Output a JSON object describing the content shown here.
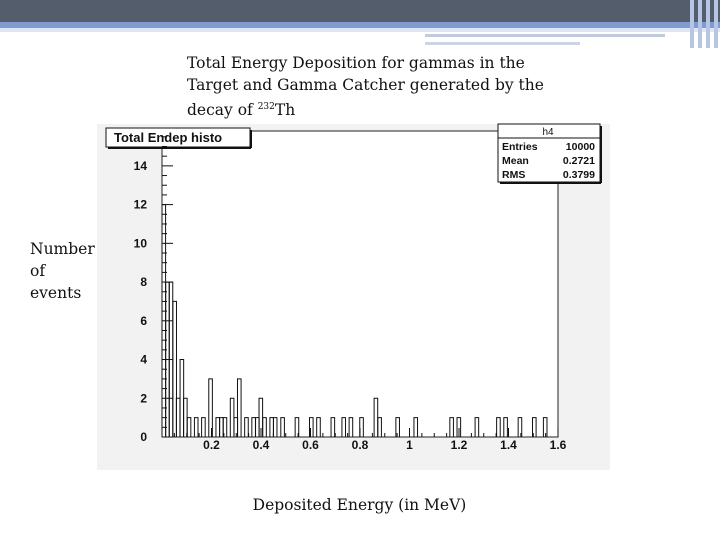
{
  "slide": {
    "title_main": "Total Energy Deposition for gammas in the Target and Gamma Catcher generated by the decay of ",
    "title_isotope_mass": "232",
    "title_isotope_symbol": "Th",
    "ylabel": "Number of events",
    "xlabel": "Deposited Energy (in MeV)"
  },
  "colors": {
    "accent": "#545d6b",
    "accent_blue": "#7f9bd0",
    "plot_bg": "#f2f2f2"
  },
  "chart_data": {
    "type": "bar",
    "title": "Total Endep histo",
    "stats_box": {
      "name": "h4",
      "entries_label": "Entries",
      "entries": "10000",
      "mean_label": "Mean",
      "mean": "0.2721",
      "rms_label": "RMS",
      "rms": "0.3799"
    },
    "xlim": [
      0,
      1.6
    ],
    "ylim": [
      0,
      15.8
    ],
    "bin_width": 0.0145,
    "x_ticks": [
      "0.2",
      "0.4",
      "0.6",
      "0.8",
      "1",
      "1.2",
      "1.4",
      "1.6"
    ],
    "y_ticks": [
      "0",
      "2",
      "4",
      "6",
      "8",
      "10",
      "12",
      "14"
    ],
    "bins": [
      [
        0.0,
        12
      ],
      [
        0.015,
        8
      ],
      [
        0.029,
        8
      ],
      [
        0.044,
        7
      ],
      [
        0.058,
        2
      ],
      [
        0.073,
        4
      ],
      [
        0.087,
        2
      ],
      [
        0.102,
        1
      ],
      [
        0.131,
        1
      ],
      [
        0.16,
        1
      ],
      [
        0.189,
        3
      ],
      [
        0.218,
        1
      ],
      [
        0.233,
        1
      ],
      [
        0.247,
        1
      ],
      [
        0.276,
        2
      ],
      [
        0.291,
        1
      ],
      [
        0.305,
        3
      ],
      [
        0.334,
        1
      ],
      [
        0.363,
        1
      ],
      [
        0.378,
        1
      ],
      [
        0.392,
        2
      ],
      [
        0.407,
        1
      ],
      [
        0.436,
        1
      ],
      [
        0.45,
        1
      ],
      [
        0.48,
        1
      ],
      [
        0.538,
        1
      ],
      [
        0.596,
        1
      ],
      [
        0.625,
        1
      ],
      [
        0.683,
        1
      ],
      [
        0.727,
        1
      ],
      [
        0.756,
        1
      ],
      [
        0.799,
        1
      ],
      [
        0.857,
        2
      ],
      [
        0.872,
        1
      ],
      [
        0.945,
        1
      ],
      [
        1.018,
        1
      ],
      [
        1.163,
        1
      ],
      [
        1.192,
        1
      ],
      [
        1.265,
        1
      ],
      [
        1.352,
        1
      ],
      [
        1.381,
        1
      ],
      [
        1.439,
        1
      ],
      [
        1.497,
        1
      ],
      [
        1.541,
        1
      ]
    ]
  }
}
